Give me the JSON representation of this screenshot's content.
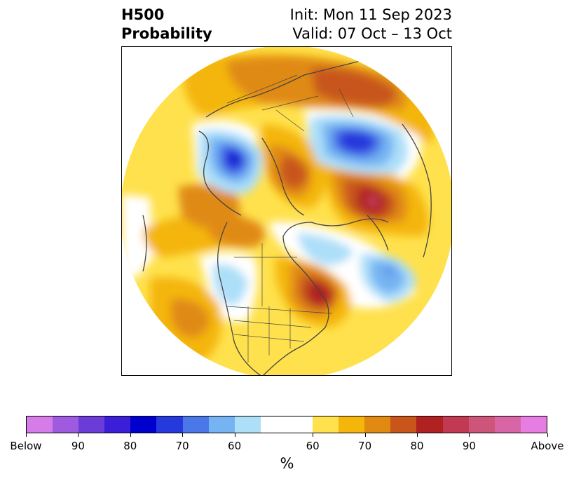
{
  "title": {
    "left_line1": "H500",
    "left_line2": "Probability",
    "right_line1": "Init: Mon 11 Sep 2023",
    "right_line2": "Valid: 07 Oct – 13 Oct"
  },
  "colorbar": {
    "label": "%",
    "colors": [
      "#d67ce8",
      "#9e5be0",
      "#6b3cd8",
      "#3a1ed8",
      "#0000cc",
      "#2639dd",
      "#4b78e8",
      "#75b3f2",
      "#addff9",
      "#ffffff",
      "#ffe14d",
      "#f4b60a",
      "#e08a12",
      "#c8561a",
      "#b02121",
      "#c13a52",
      "#ce557a",
      "#d865a6",
      "#e57de2"
    ],
    "tick_labels": [
      "Below",
      "90",
      "80",
      "70",
      "60",
      "60",
      "70",
      "80",
      "90",
      "Above"
    ]
  },
  "map": {
    "projection": "north-polar-stereographic",
    "colors": {
      "white": "#ffffff",
      "yellow": "#ffe14d",
      "gold": "#f4b60a",
      "orange": "#e08a12",
      "dark_orange": "#c8561a",
      "red": "#b02121",
      "crimson": "#c13a52",
      "light_blue": "#addff9",
      "sky_blue": "#75b3f2",
      "blue": "#4b78e8",
      "royal_blue": "#2639dd",
      "deep_blue": "#0000cc",
      "coastline": "#444444"
    }
  }
}
